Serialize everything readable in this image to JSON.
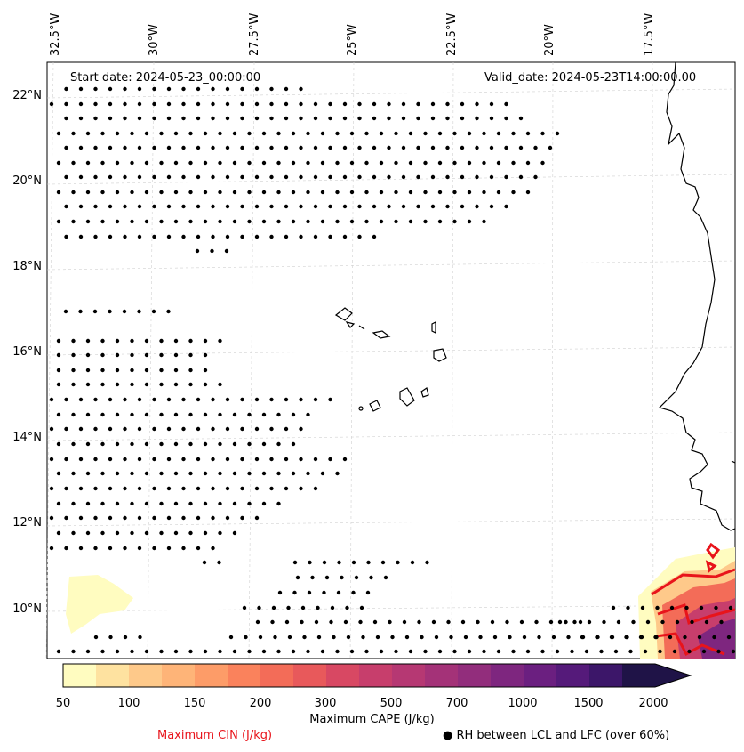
{
  "map": {
    "start_label": "Start date: 2024-05-23_00:00:00",
    "valid_label": "Valid_date: 2024-05-23T14:00:00.00",
    "lon_labels": [
      "32.5°W",
      "30°W",
      "27.5°W",
      "25°W",
      "22.5°W",
      "20°W",
      "17.5°W"
    ],
    "lat_labels": [
      "22°N",
      "20°N",
      "18°N",
      "16°N",
      "14°N",
      "12°N",
      "10°N"
    ],
    "colors": {
      "cin_contour": "#e8141b",
      "coast": "#000000",
      "grid": "#d0d0d0"
    }
  },
  "colorbar": {
    "title": "Maximum CAPE (J/kg)",
    "tick_labels": [
      "50",
      "100",
      "150",
      "200",
      "300",
      "500",
      "700",
      "1000",
      "1500",
      "2000"
    ],
    "colors": [
      "#fffcc0",
      "#fee2a0",
      "#fec98a",
      "#feb478",
      "#fd9c68",
      "#fa825c",
      "#f36c58",
      "#e8595b",
      "#d84863",
      "#c73e6c",
      "#b63873",
      "#a43278",
      "#922d7c",
      "#7e267f",
      "#6b1f80",
      "#551a7a",
      "#3c1669",
      "#1f1347"
    ]
  },
  "legend": {
    "cin_label": "Maximum CIN (J/kg)",
    "rh_label": "RH between LCL and LFC (over 60%)",
    "rh_marker": "●"
  }
}
